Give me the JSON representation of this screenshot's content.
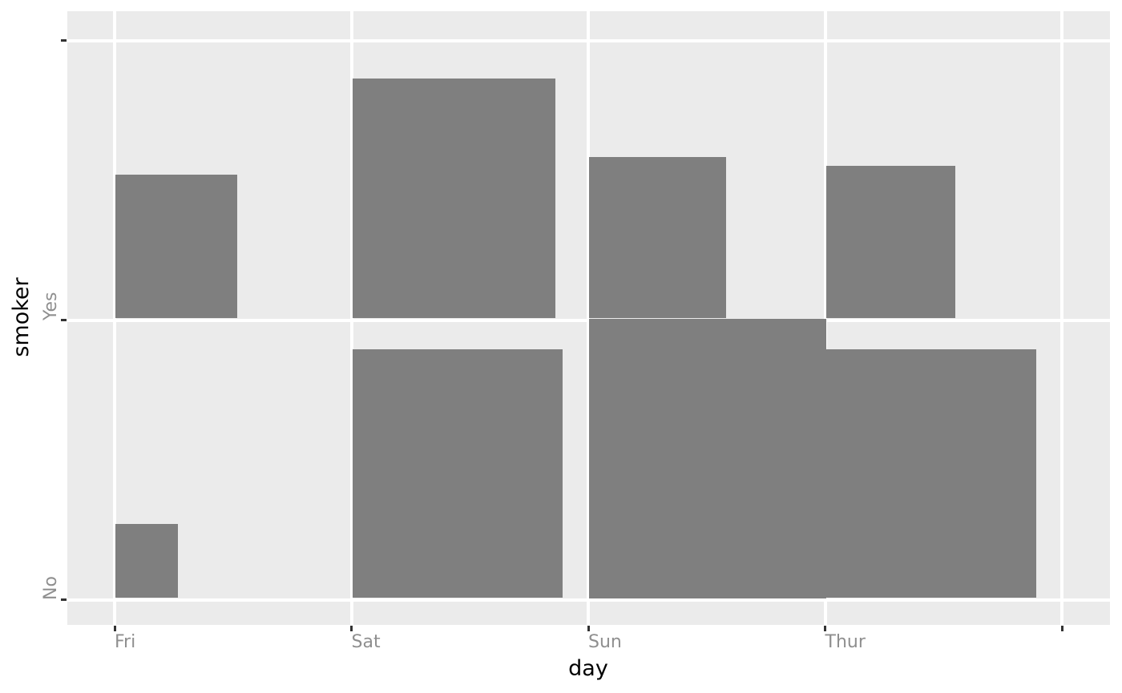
{
  "chart_data": {
    "type": "mosaic",
    "description": "Count plot of day vs smoker (tips dataset). Each (day, smoker) cell shows a grey square anchored at the bottom-left of the category grid intersection; square area is proportional to the record count. Unlabeled extra tick/gridline after the last category on both axes.",
    "title": "",
    "xlabel": "day",
    "ylabel": "smoker",
    "x_categories": [
      "Fri",
      "Sat",
      "Sun",
      "Thur"
    ],
    "y_categories": [
      "No",
      "Yes"
    ],
    "series": [
      {
        "name": "No",
        "values": [
          4,
          45,
          57,
          45
        ]
      },
      {
        "name": "Yes",
        "values": [
          15,
          42,
          19,
          17
        ]
      }
    ],
    "max_count": 57,
    "legend": "none",
    "grid": "white major gridlines on grey panel, drawn beneath bars"
  },
  "style": {
    "figure_background": "#FFFFFF",
    "panel_background": "#EBEBEB",
    "bar_color": "#7F7F7F",
    "gridline_color": "#FFFFFF",
    "tick_mark_color": "#333333",
    "tick_label_color": "#8F8F8F",
    "axis_title_color": "#000000"
  }
}
